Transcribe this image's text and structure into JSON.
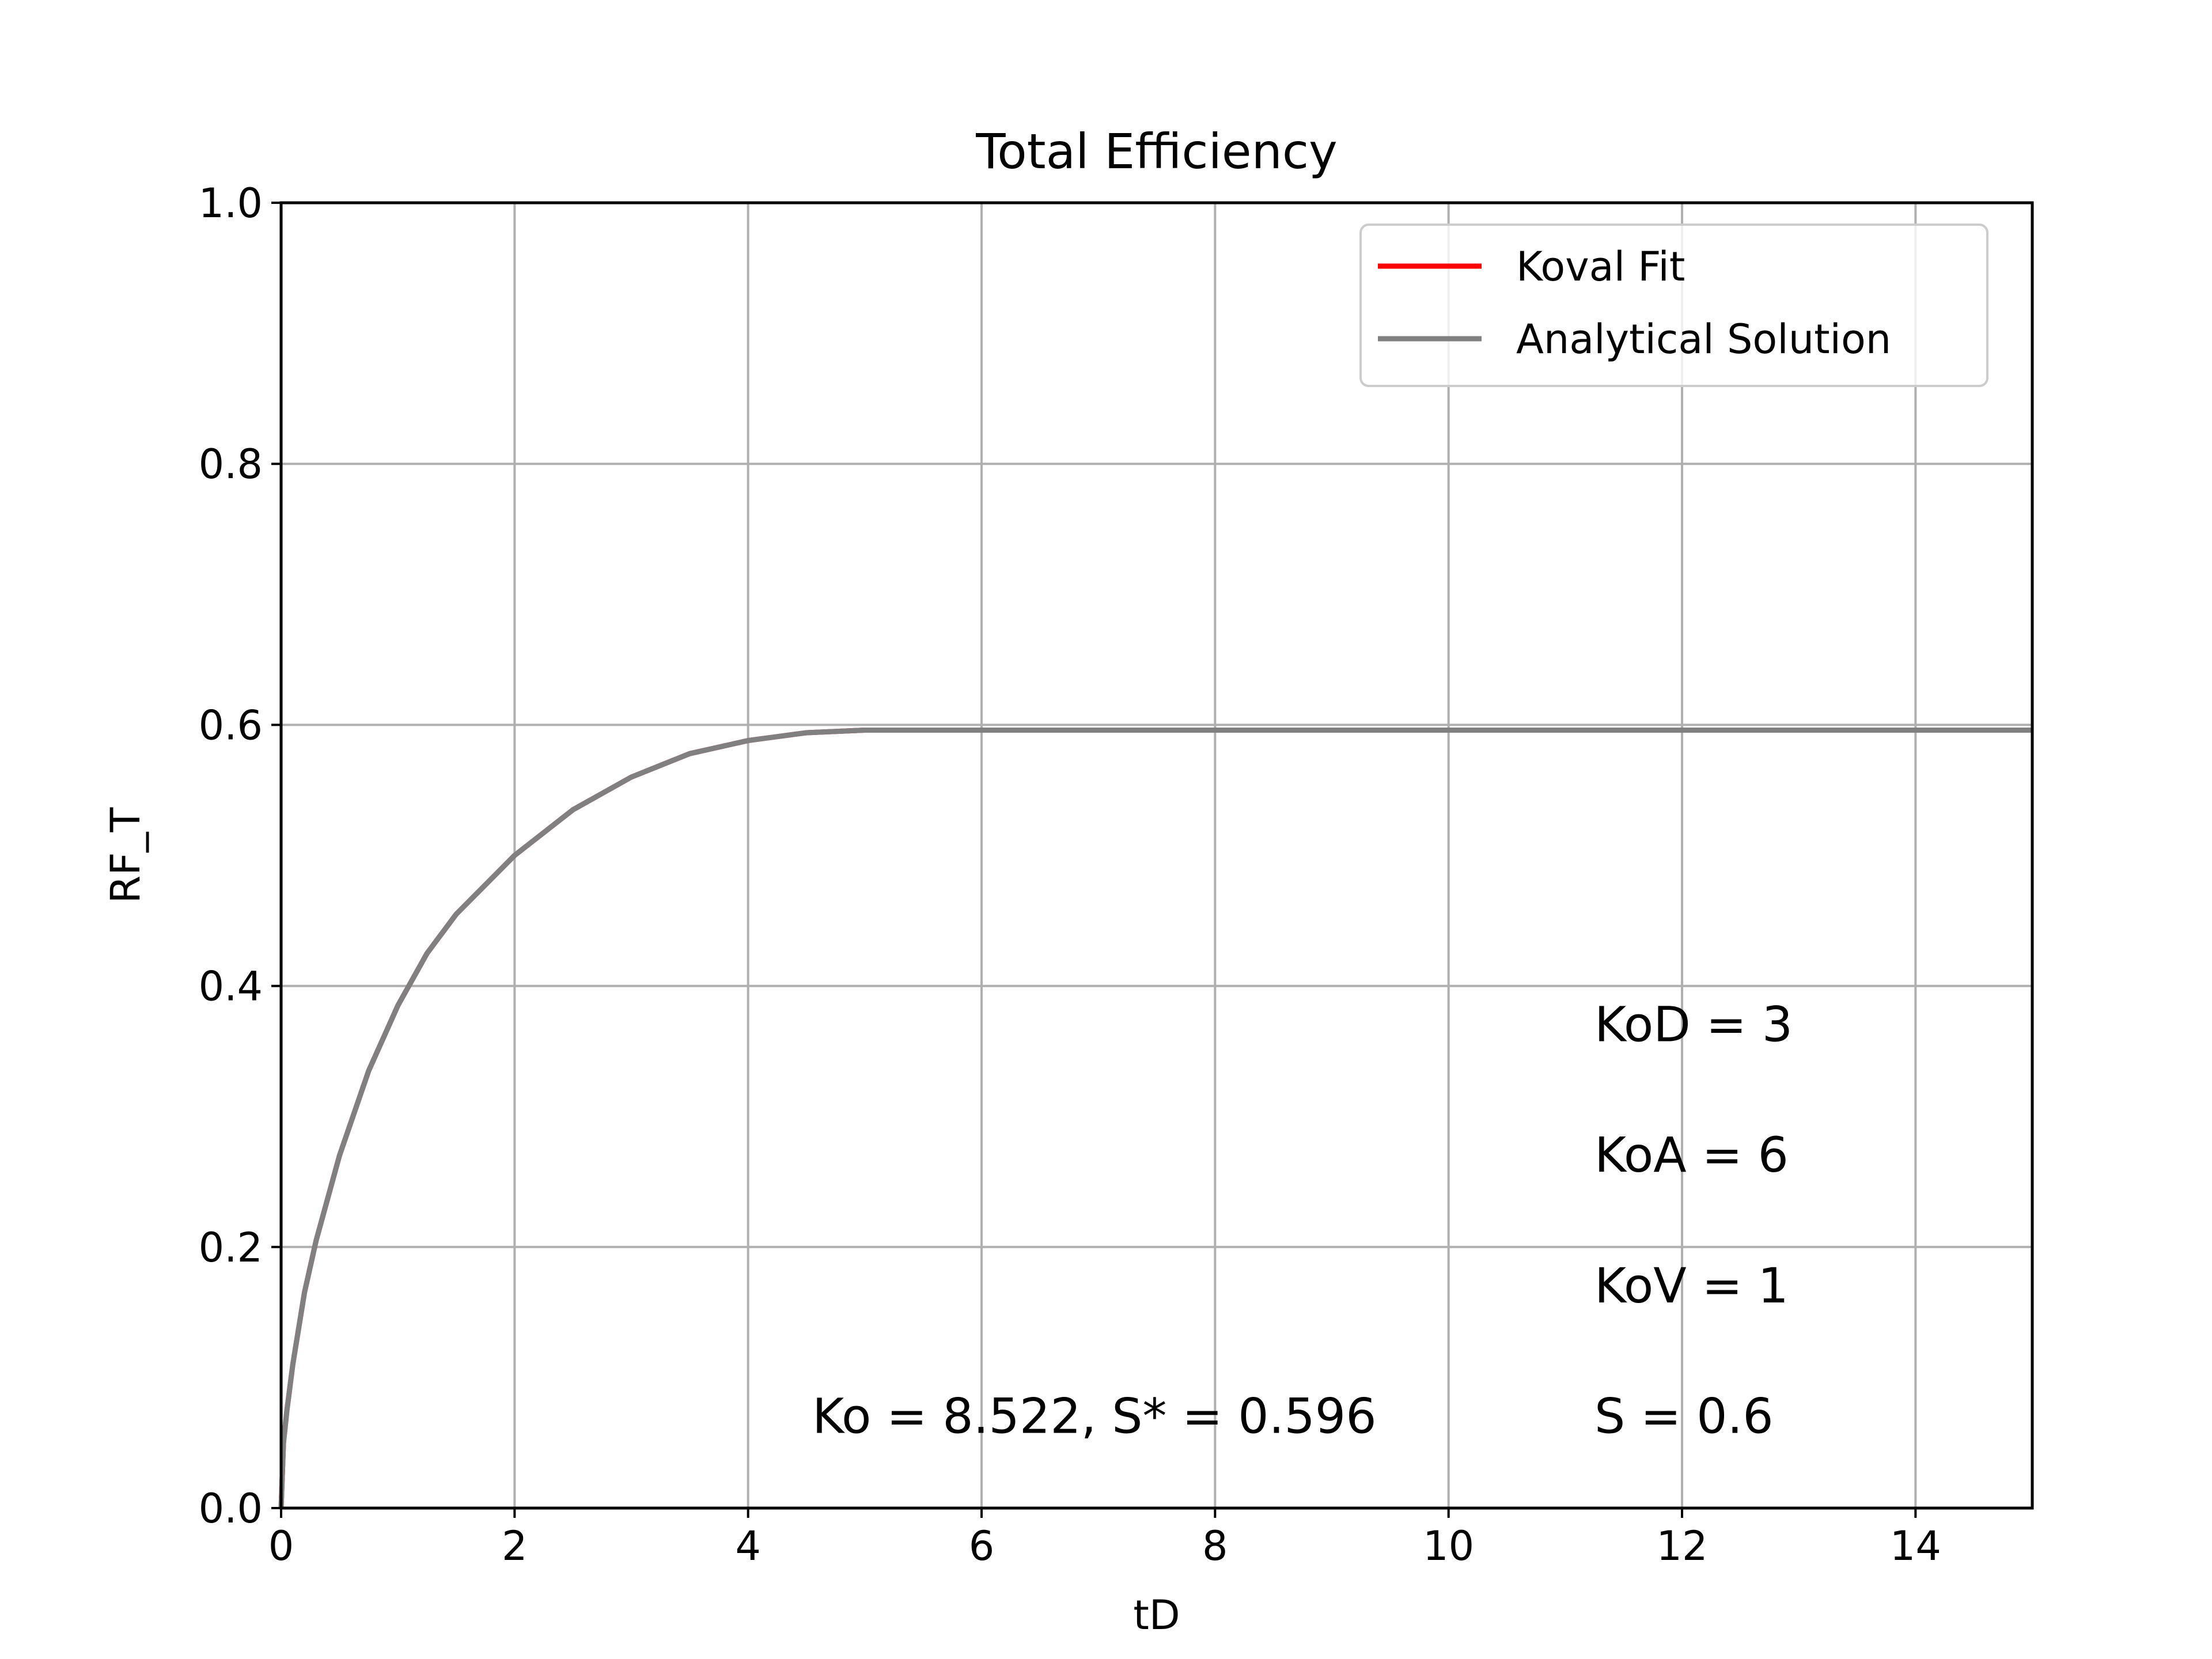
{
  "chart_data": {
    "type": "line",
    "title": "Total Efficiency",
    "xlabel": "tD",
    "ylabel": "RF_T",
    "xlim": [
      0,
      15
    ],
    "ylim": [
      0,
      1
    ],
    "xticks": [
      0,
      2,
      4,
      6,
      8,
      10,
      12,
      14
    ],
    "yticks": [
      "0.0",
      "0.2",
      "0.4",
      "0.6",
      "0.8",
      "1.0"
    ],
    "grid": true,
    "legend_position": "upper-right",
    "series": [
      {
        "name": "Koval Fit",
        "color": "#ff0000",
        "x": [
          0,
          0.02,
          0.05,
          0.1,
          0.2,
          0.3,
          0.5,
          0.75,
          1.0,
          1.25,
          1.5,
          2.0,
          2.5,
          3.0,
          3.5,
          4.0,
          4.5,
          5.0,
          6.0,
          8.0,
          10.0,
          12.0,
          14.0,
          15.0
        ],
        "y": [
          0,
          0.05,
          0.075,
          0.11,
          0.165,
          0.205,
          0.27,
          0.335,
          0.385,
          0.425,
          0.455,
          0.5,
          0.535,
          0.56,
          0.578,
          0.588,
          0.594,
          0.596,
          0.596,
          0.596,
          0.596,
          0.596,
          0.596,
          0.596
        ]
      },
      {
        "name": "Analytical Solution",
        "color": "#808080",
        "x": [
          0,
          0.02,
          0.05,
          0.1,
          0.2,
          0.3,
          0.5,
          0.75,
          1.0,
          1.25,
          1.5,
          2.0,
          2.5,
          3.0,
          3.5,
          4.0,
          4.5,
          5.0,
          6.0,
          8.0,
          10.0,
          12.0,
          14.0,
          15.0
        ],
        "y": [
          0,
          0.05,
          0.075,
          0.11,
          0.165,
          0.205,
          0.27,
          0.335,
          0.385,
          0.425,
          0.455,
          0.5,
          0.535,
          0.56,
          0.578,
          0.588,
          0.594,
          0.596,
          0.596,
          0.596,
          0.596,
          0.596,
          0.596,
          0.596
        ]
      }
    ],
    "annotations": [
      {
        "text": "KoD = 3",
        "x": 11.25,
        "y": 0.37
      },
      {
        "text": "KoA = 6",
        "x": 11.25,
        "y": 0.27
      },
      {
        "text": "KoV = 1",
        "x": 11.25,
        "y": 0.17
      },
      {
        "text": "S = 0.6",
        "x": 11.25,
        "y": 0.07
      },
      {
        "text": "Ko = 8.522, S* = 0.596",
        "x": 4.55,
        "y": 0.07
      }
    ]
  }
}
